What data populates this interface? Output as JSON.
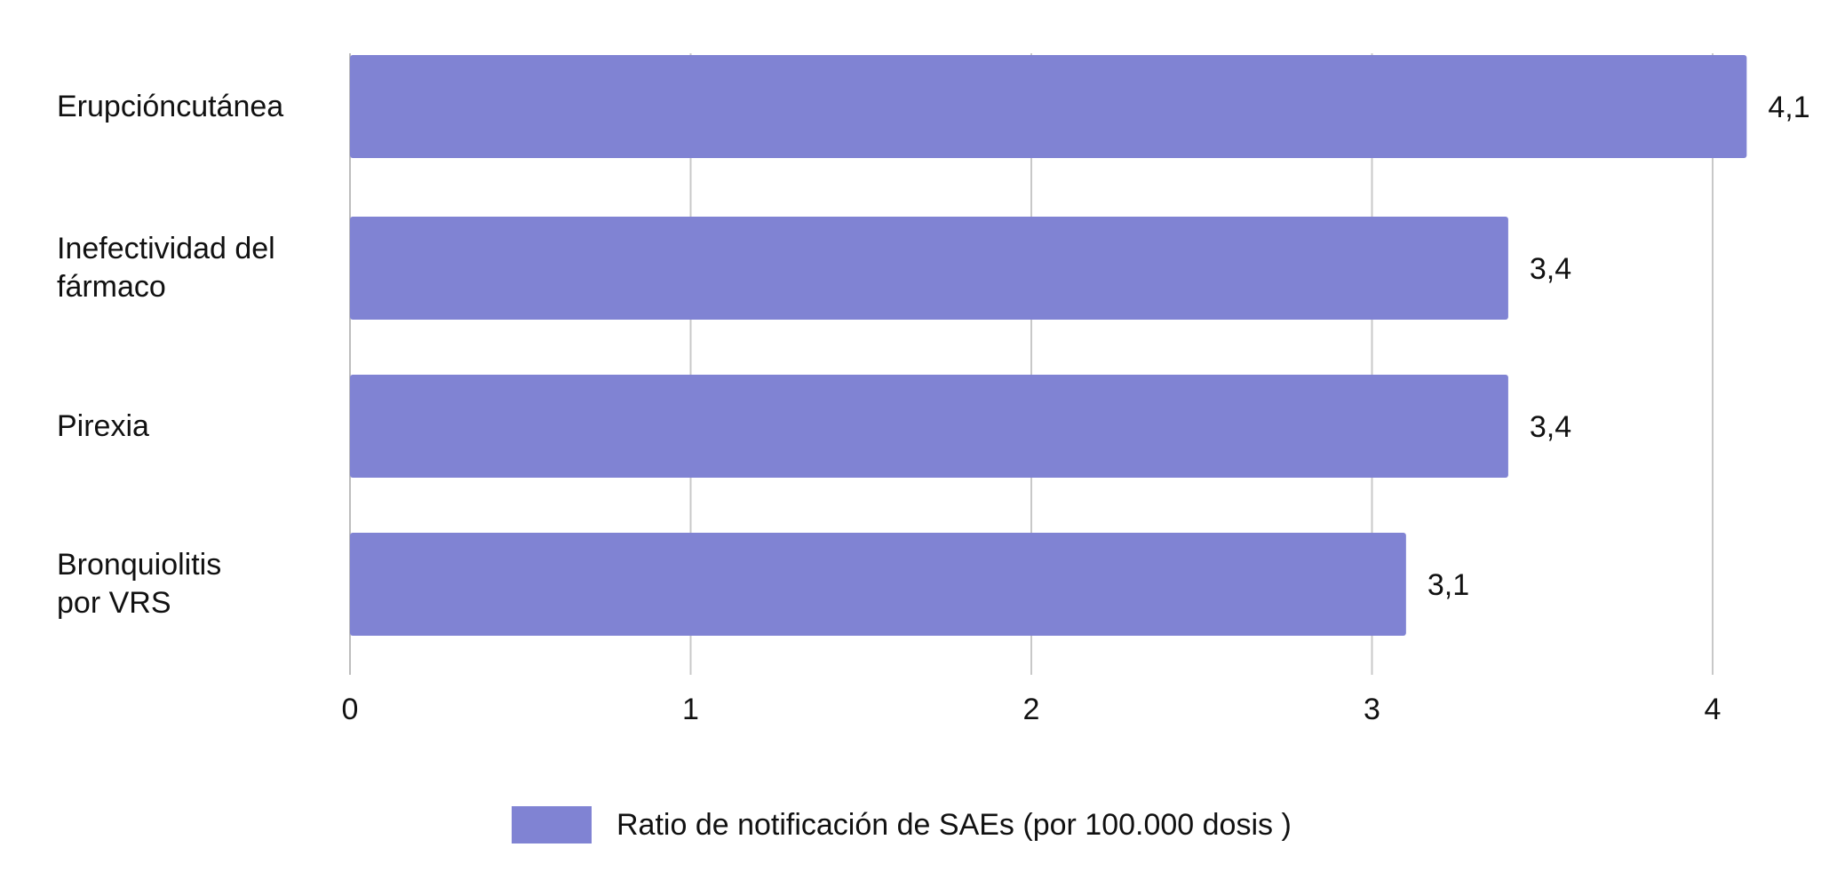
{
  "chart_data": {
    "type": "bar",
    "orientation": "horizontal",
    "categories": [
      [
        "Erupcióncutánea"
      ],
      [
        "Inefectividad del",
        "fármaco"
      ],
      [
        "Pirexia"
      ],
      [
        "Bronquiolitis",
        "por VRS"
      ]
    ],
    "series": [
      {
        "name": "Ratio de notificación de SAEs (por 100.000 dosis )",
        "values": [
          4.1,
          3.4,
          3.4,
          3.1
        ],
        "data_labels": [
          "4,1",
          "3,4",
          "3,4",
          "3,1"
        ],
        "color": "#8083d3"
      }
    ],
    "xlim": [
      0,
      4
    ],
    "x_ticks": [
      "0",
      "1",
      "2",
      "3",
      "4"
    ],
    "grid": "vertical",
    "legend_position": "bottom-center",
    "title": "",
    "xlabel": "",
    "ylabel": ""
  },
  "legend": {
    "label": "Ratio de notificación de SAEs (por 100.000 dosis )"
  }
}
